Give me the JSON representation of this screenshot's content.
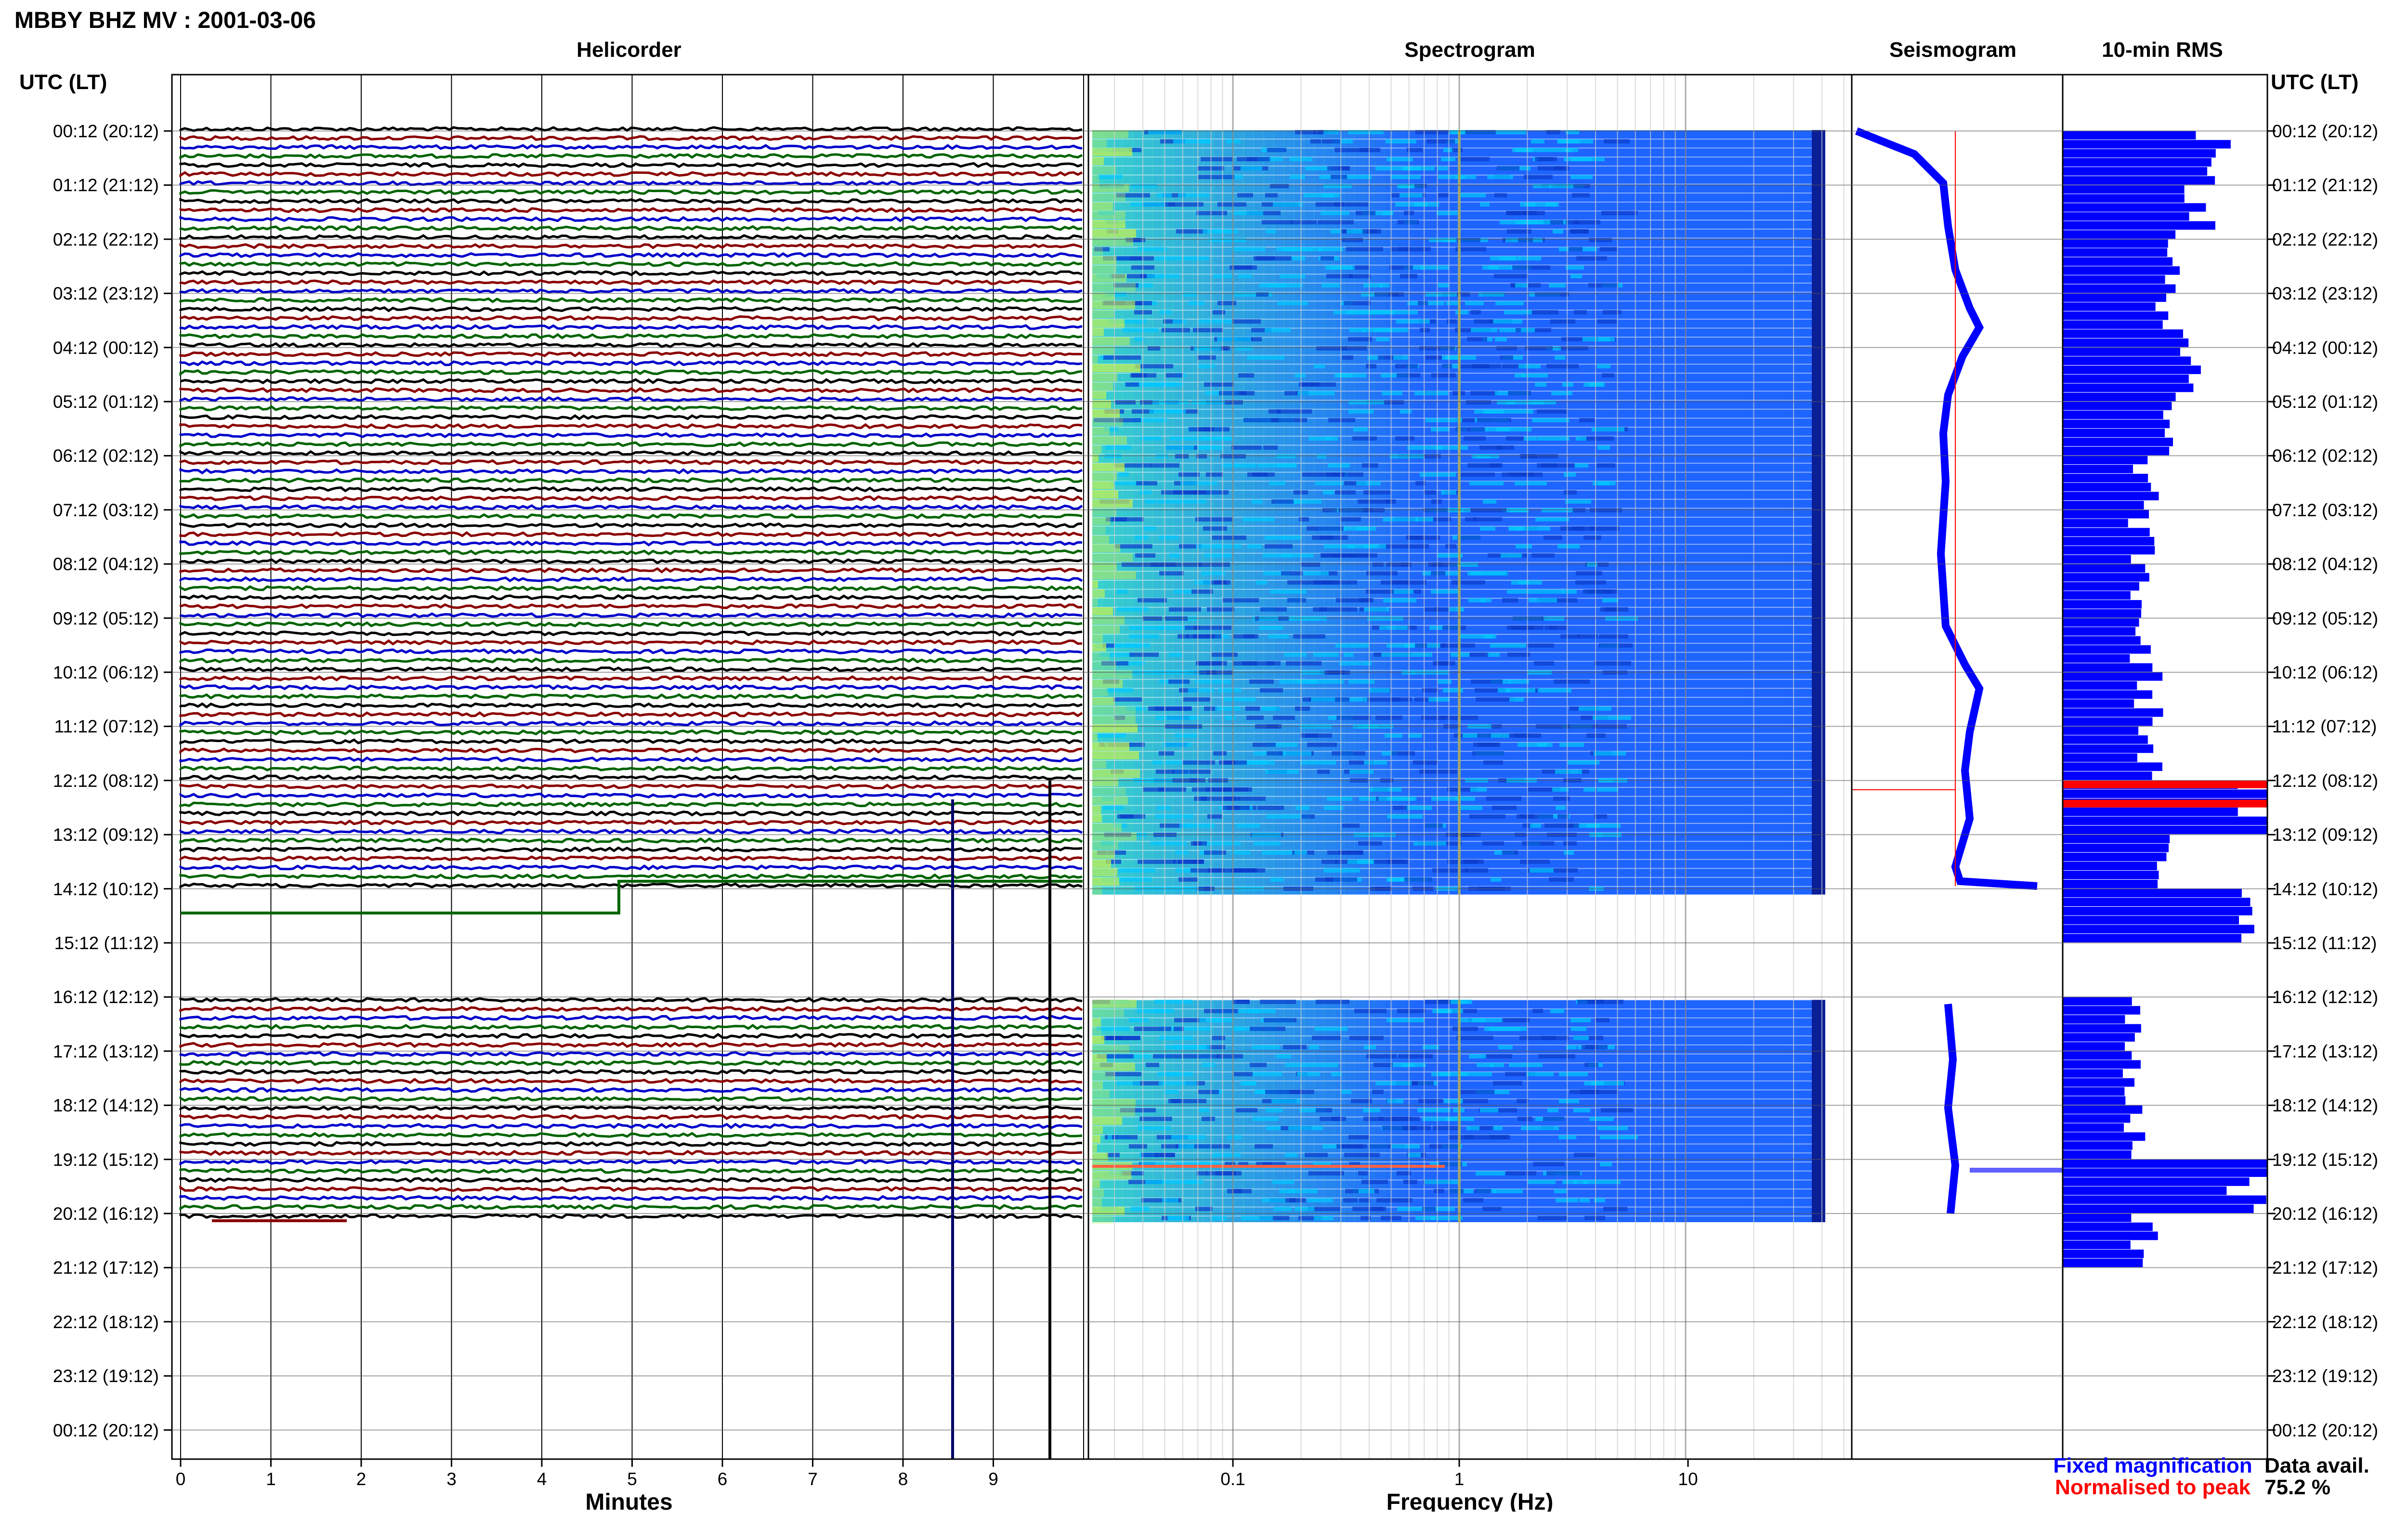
{
  "page": {
    "title": "MBBY BHZ MV : 2001-03-06"
  },
  "panels": {
    "helicorder_title": "Helicorder",
    "spectrogram_title": "Spectrogram",
    "seismogram_title": "Seismogram",
    "rms_title": "10-min RMS"
  },
  "time_axis": {
    "header_left": "UTC (LT)",
    "header_right": "UTC (LT)",
    "labels": [
      "00:12 (20:12)",
      "01:12 (21:12)",
      "02:12 (22:12)",
      "03:12 (23:12)",
      "04:12 (00:12)",
      "05:12 (01:12)",
      "06:12 (02:12)",
      "07:12 (03:12)",
      "08:12 (04:12)",
      "09:12 (05:12)",
      "10:12 (06:12)",
      "11:12 (07:12)",
      "12:12 (08:12)",
      "13:12 (09:12)",
      "14:12 (10:12)",
      "15:12 (11:12)",
      "16:12 (12:12)",
      "17:12 (13:12)",
      "18:12 (14:12)",
      "19:12 (15:12)",
      "20:12 (16:12)",
      "21:12 (17:12)",
      "22:12 (18:12)",
      "23:12 (19:12)",
      "00:12 (20:12)"
    ]
  },
  "helicorder_axis": {
    "label": "Minutes",
    "ticks": [
      "0",
      "1",
      "2",
      "3",
      "4",
      "5",
      "6",
      "7",
      "8",
      "9"
    ]
  },
  "spectrogram_axis": {
    "label": "Frequency (Hz)",
    "ticks": [
      "0.1",
      "1",
      "10"
    ]
  },
  "legend": {
    "fixed": "Fixed magnification",
    "normalised": "Normalised to peak",
    "fixed_color": "#0000ff",
    "normalised_color": "#ff0000"
  },
  "data_avail": {
    "label": "Data avail.",
    "value": "75.2 %"
  },
  "colors": {
    "trace_cycle": [
      "#000000",
      "#8b0000",
      "#0000cc",
      "#006400"
    ],
    "rms_bar": "#0000ff",
    "rms_peak": "#ff0000",
    "spectrogram_base": "#1e64ff",
    "spectrogram_low_freq": "#3cdcc8"
  },
  "chart_data": {
    "type": "bar",
    "title": "10-min RMS",
    "x_axis": "relative RMS amplitude",
    "y_axis": "Time UTC (LT), hourly ticks from 00:12 to 00:12 next day",
    "data_gap": "14:12-16:12 UTC",
    "rows_hourly_rms": [
      {
        "time": "00:12",
        "rms": 0.82
      },
      {
        "time": "01:12",
        "rms": 0.68
      },
      {
        "time": "02:12",
        "rms": 0.58
      },
      {
        "time": "03:12",
        "rms": 0.55
      },
      {
        "time": "04:12",
        "rms": 0.62
      },
      {
        "time": "05:12",
        "rms": 0.5
      },
      {
        "time": "06:12",
        "rms": 0.43
      },
      {
        "time": "07:12",
        "rms": 0.4
      },
      {
        "time": "08:12",
        "rms": 0.4
      },
      {
        "time": "09:12",
        "rms": 0.4
      },
      {
        "time": "10:12",
        "rms": 0.44
      },
      {
        "time": "11:12",
        "rms": 0.45
      },
      {
        "time": "12:12",
        "rms": 1.0
      },
      {
        "time": "13:12",
        "rms": 0.5
      },
      {
        "time": "14:12",
        "rms": 1.0
      },
      {
        "time": "16:12",
        "rms": 0.38
      },
      {
        "time": "17:12",
        "rms": 0.36
      },
      {
        "time": "18:12",
        "rms": 0.38
      },
      {
        "time": "19:12",
        "rms": 1.0
      },
      {
        "time": "20:12",
        "rms": 0.42
      }
    ],
    "seismogram_trend": "slow drift of median amplitude, higher near 03:12-04:12 and 10:12",
    "spectrogram_freq_range_hz": [
      0.02,
      40
    ],
    "helicorder_minutes_per_line": 10
  }
}
